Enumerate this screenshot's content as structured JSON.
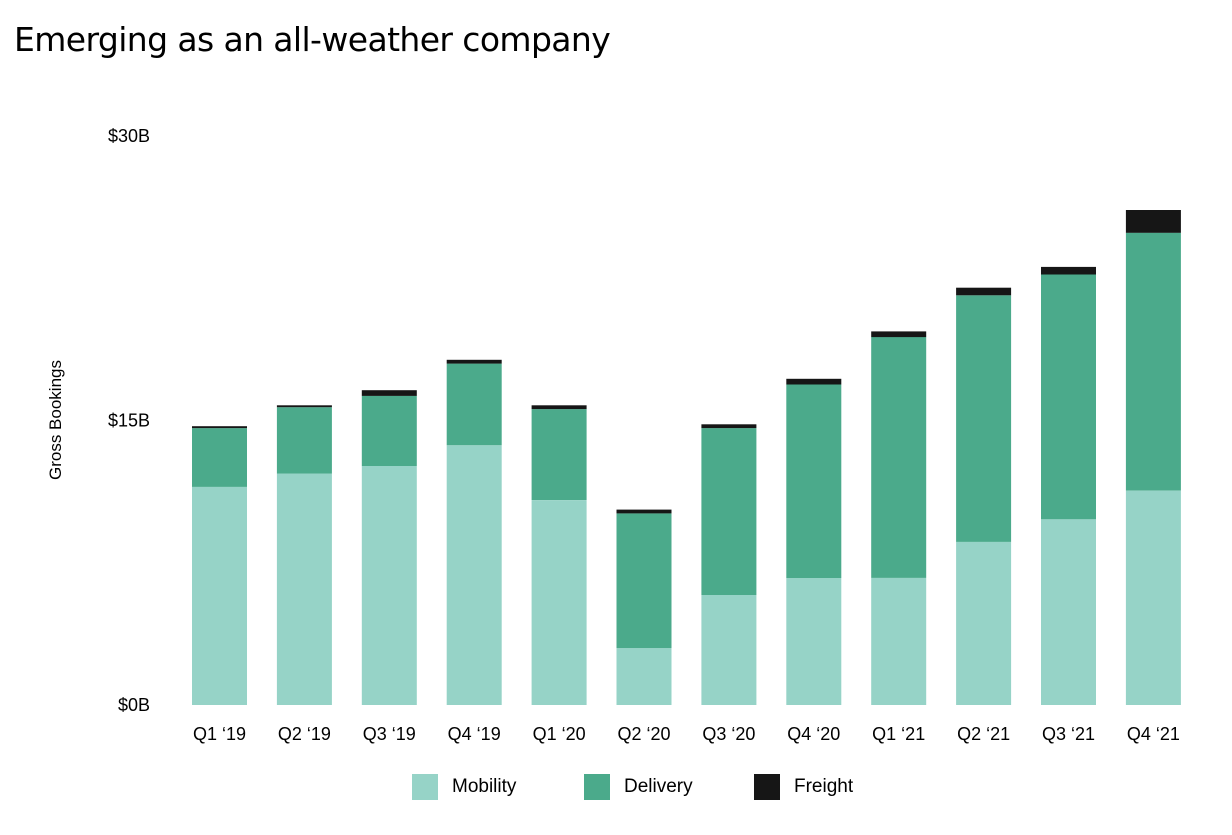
{
  "chart_data": {
    "type": "bar",
    "stacked": true,
    "title": "Emerging as an all-weather company",
    "ylabel": "Gross Bookings",
    "xlabel": "",
    "ylim": [
      0,
      30
    ],
    "y_ticks": [
      {
        "value": 0,
        "label": "$0B"
      },
      {
        "value": 15,
        "label": "$15B"
      },
      {
        "value": 30,
        "label": "$30B"
      }
    ],
    "categories": [
      "Q1 ‘19",
      "Q2 ‘19",
      "Q3 ‘19",
      "Q4 ‘19",
      "Q1 ‘20",
      "Q2 ‘20",
      "Q3 ‘20",
      "Q4 ‘20",
      "Q1 ‘21",
      "Q2 ‘21",
      "Q3 ‘21",
      "Q4 ‘21"
    ],
    "series": [
      {
        "name": "Mobility",
        "color": "#96d3c7",
        "values": [
          11.5,
          12.2,
          12.6,
          13.7,
          10.8,
          3.0,
          5.8,
          6.7,
          6.7,
          8.6,
          9.8,
          11.3
        ]
      },
      {
        "name": "Delivery",
        "color": "#4baa8b",
        "values": [
          3.1,
          3.5,
          3.7,
          4.3,
          4.8,
          7.1,
          8.8,
          10.2,
          12.7,
          13.0,
          12.9,
          13.6
        ]
      },
      {
        "name": "Freight",
        "color": "#161616",
        "values": [
          0.1,
          0.1,
          0.3,
          0.2,
          0.2,
          0.2,
          0.2,
          0.3,
          0.3,
          0.4,
          0.4,
          1.2
        ]
      }
    ],
    "grid": false,
    "legend_position": "bottom-center"
  }
}
